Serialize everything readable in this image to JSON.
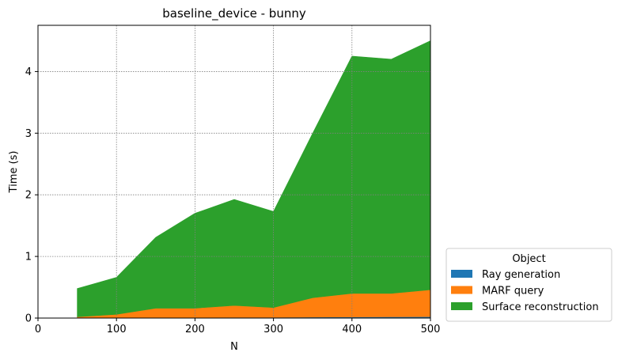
{
  "chart_data": {
    "type": "area",
    "stacked": true,
    "title": "baseline_device - bunny",
    "xlabel": "N",
    "ylabel": "Time (s)",
    "xlim": [
      0,
      500
    ],
    "ylim": [
      0,
      4.75
    ],
    "xticks": [
      0,
      100,
      200,
      300,
      400,
      500
    ],
    "yticks": [
      0,
      1,
      2,
      3,
      4
    ],
    "grid": true,
    "legend": {
      "title": "Object",
      "placement": "outside-bottom-right"
    },
    "x": [
      50,
      100,
      150,
      200,
      250,
      300,
      350,
      400,
      450,
      500
    ],
    "series": [
      {
        "name": "Ray generation",
        "color": "#1f77b4",
        "values": [
          0.003,
          0.005,
          0.008,
          0.01,
          0.012,
          0.012,
          0.015,
          0.018,
          0.02,
          0.022
        ]
      },
      {
        "name": "MARF query",
        "color": "#ff7f0e",
        "values": [
          0.017,
          0.055,
          0.152,
          0.15,
          0.193,
          0.158,
          0.315,
          0.382,
          0.38,
          0.438
        ]
      },
      {
        "name": "Surface reconstruction",
        "color": "#2ca02c",
        "values": [
          0.46,
          0.6,
          1.15,
          1.54,
          1.72,
          1.56,
          2.67,
          3.85,
          3.8,
          4.04
        ]
      }
    ]
  }
}
